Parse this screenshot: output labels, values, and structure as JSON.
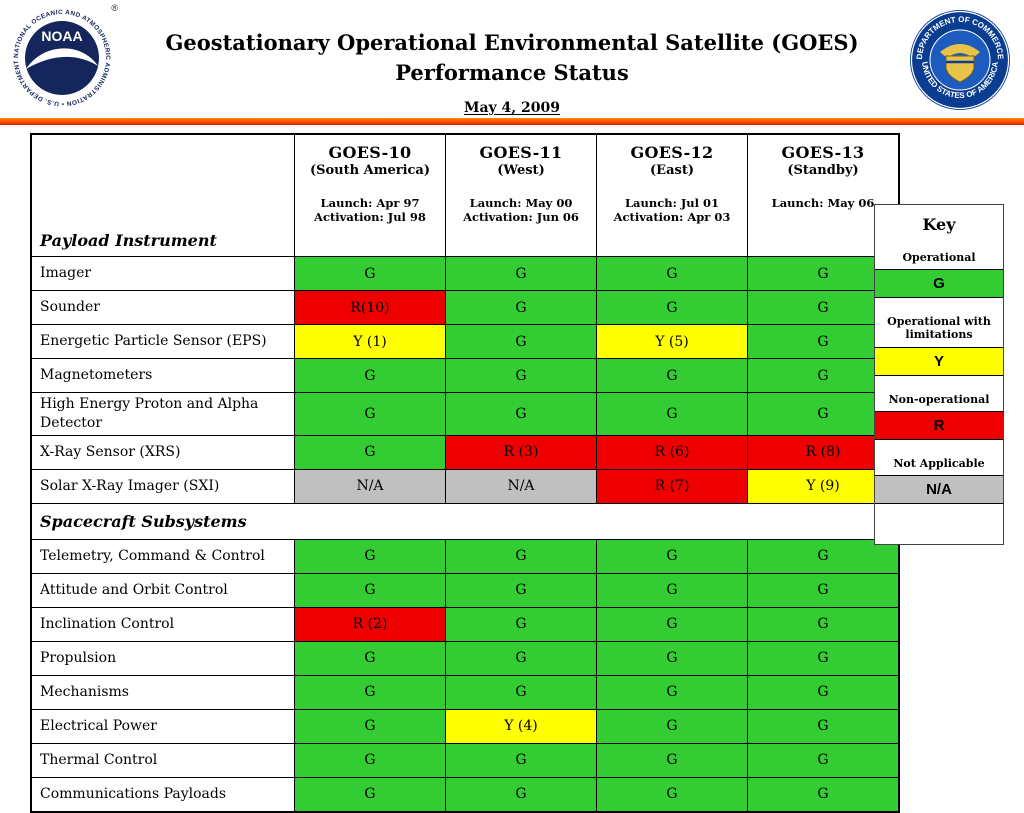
{
  "header": {
    "title_line1": "Geostationary Operational Environmental Satellite (GOES)",
    "title_line2": "Performance Status",
    "date": "May 4, 2009",
    "noaa_logo": {
      "acronym": "NOAA",
      "ring_text": "NATIONAL OCEANIC AND ATMOSPHERIC ADMINISTRATION • U.S. DEPARTMENT OF COMMERCE",
      "reg_mark": "®"
    },
    "doc_seal": {
      "ring_top": "DEPARTMENT OF COMMERCE",
      "ring_bottom": "UNITED STATES OF AMERICA"
    }
  },
  "table": {
    "corner_label": "Payload Instrument",
    "columns": [
      {
        "name": "GOES-10",
        "subtitle": "(South America)",
        "launch": "Launch: Apr 97",
        "activation": "Activation: Jul 98"
      },
      {
        "name": "GOES-11",
        "subtitle": "(West)",
        "launch": "Launch: May 00",
        "activation": "Activation: Jun 06"
      },
      {
        "name": "GOES-12",
        "subtitle": "(East)",
        "launch": "Launch: Jul 01",
        "activation": "Activation: Apr 03"
      },
      {
        "name": "GOES-13",
        "subtitle": "(Standby)",
        "launch": "Launch: May 06",
        "activation": ""
      }
    ],
    "payload_rows": [
      {
        "label": "Imager",
        "cells": [
          "G",
          "G",
          "G",
          "G"
        ]
      },
      {
        "label": "Sounder",
        "cells": [
          "R(10)",
          "G",
          "G",
          "G"
        ]
      },
      {
        "label": "Energetic Particle Sensor (EPS)",
        "cells": [
          "Y (1)",
          "G",
          "Y (5)",
          "G"
        ]
      },
      {
        "label": "Magnetometers",
        "cells": [
          "G",
          "G",
          "G",
          "G"
        ]
      },
      {
        "label": "High Energy Proton and Alpha Detector",
        "cells": [
          "G",
          "G",
          "G",
          "G"
        ]
      },
      {
        "label": "X-Ray Sensor (XRS)",
        "cells": [
          "G",
          "R (3)",
          "R (6)",
          "R (8)"
        ]
      },
      {
        "label": "Solar X-Ray Imager (SXI)",
        "cells": [
          "N/A",
          "N/A",
          "R (7)",
          "Y (9)"
        ]
      }
    ],
    "section_header": "Spacecraft Subsystems",
    "subsystem_rows": [
      {
        "label": "Telemetry, Command & Control",
        "cells": [
          "G",
          "G",
          "G",
          "G"
        ]
      },
      {
        "label": "Attitude and Orbit Control",
        "cells": [
          "G",
          "G",
          "G",
          "G"
        ]
      },
      {
        "label": "Inclination Control",
        "cells": [
          "R (2)",
          "G",
          "G",
          "G"
        ]
      },
      {
        "label": "Propulsion",
        "cells": [
          "G",
          "G",
          "G",
          "G"
        ]
      },
      {
        "label": "Mechanisms",
        "cells": [
          "G",
          "G",
          "G",
          "G"
        ]
      },
      {
        "label": "Electrical Power",
        "cells": [
          "G",
          "Y (4)",
          "G",
          "G"
        ]
      },
      {
        "label": "Thermal Control",
        "cells": [
          "G",
          "G",
          "G",
          "G"
        ]
      },
      {
        "label": "Communications Payloads",
        "cells": [
          "G",
          "G",
          "G",
          "G"
        ]
      }
    ]
  },
  "key": {
    "title": "Key",
    "entries": [
      {
        "label": "Operational",
        "symbol": "G"
      },
      {
        "label": "Operational with limitations",
        "symbol": "Y"
      },
      {
        "label": "Non-operational",
        "symbol": "R"
      },
      {
        "label": "Not Applicable",
        "symbol": "N/A"
      }
    ]
  },
  "colors": {
    "operational": "#33cc33",
    "operational_with_limitations": "#ffff00",
    "non_operational": "#ee0000",
    "not_applicable": "#c0c0c0",
    "divider": "#ff4b00"
  }
}
